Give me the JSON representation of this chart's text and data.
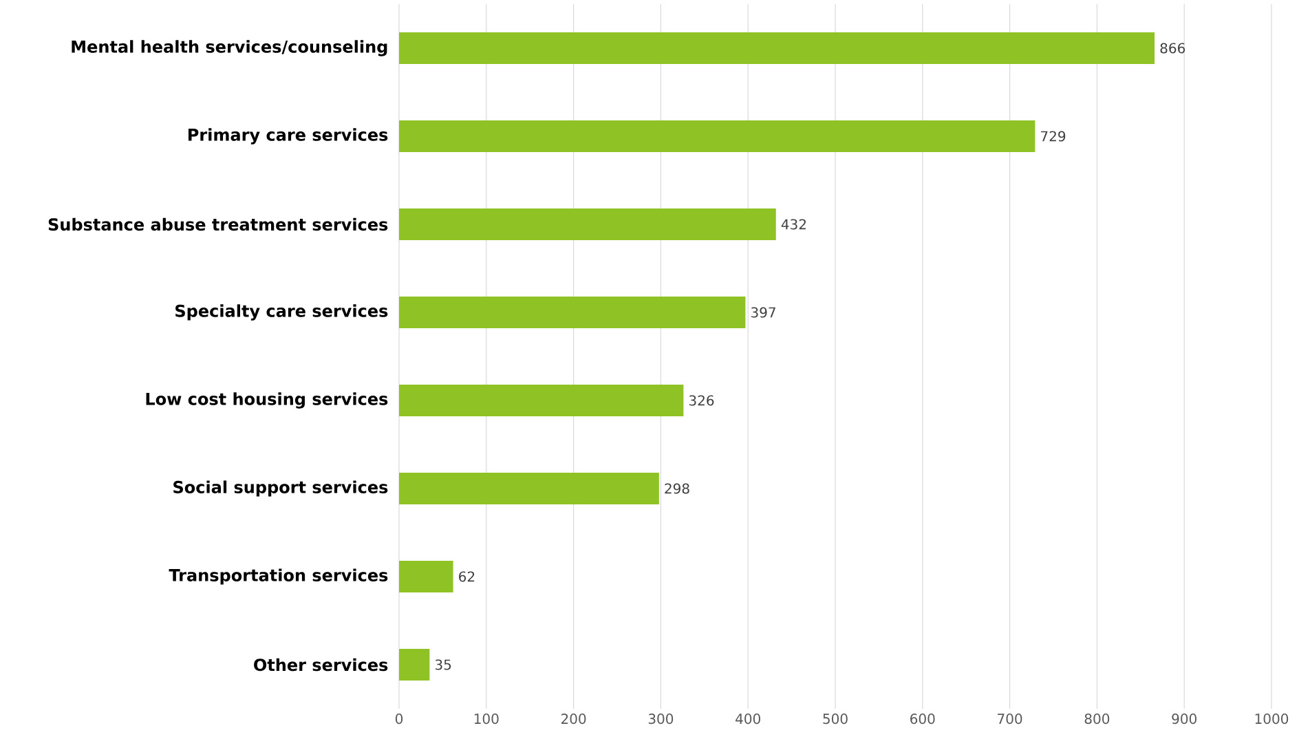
{
  "chart_data": {
    "type": "bar",
    "orientation": "horizontal",
    "categories": [
      "Mental health services/counseling",
      "Primary care services",
      "Substance abuse treatment services",
      "Specialty care services",
      "Low cost housing services",
      "Social support services",
      "Transportation services",
      "Other services"
    ],
    "values": [
      866,
      729,
      432,
      397,
      326,
      298,
      62,
      35
    ],
    "color": "#8fc224",
    "xlim": [
      0,
      1000
    ],
    "xticks": [
      0,
      100,
      200,
      300,
      400,
      500,
      600,
      700,
      800,
      900,
      1000
    ],
    "grid": "x",
    "data_labels": true
  }
}
